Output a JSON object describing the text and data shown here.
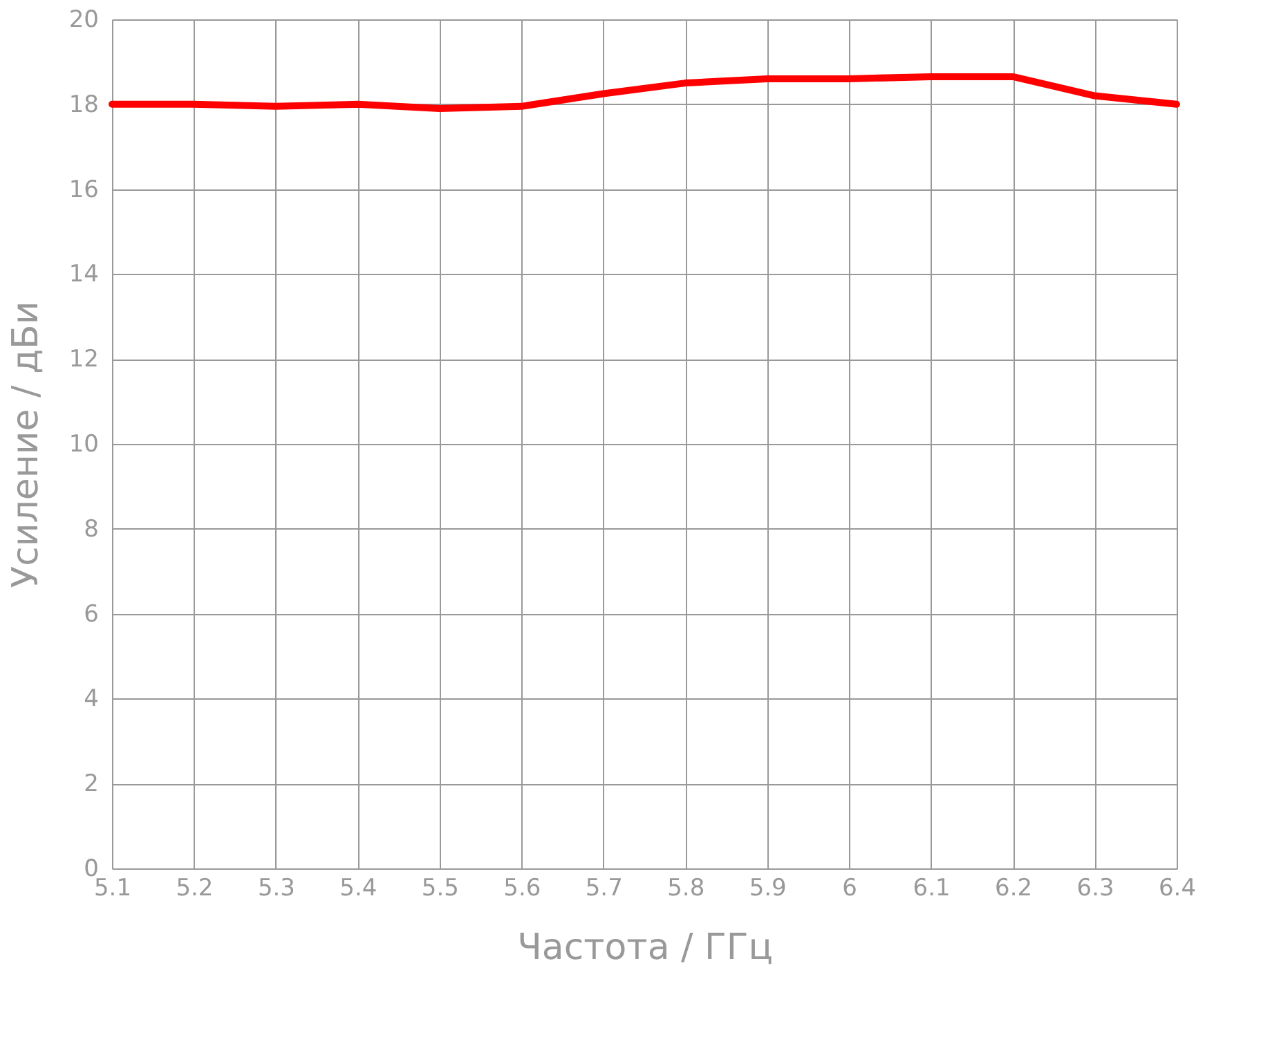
{
  "chart_data": {
    "type": "line",
    "xlabel": "Частота / ГГц",
    "ylabel": "Усиление / дБи",
    "x": [
      5.1,
      5.2,
      5.3,
      5.4,
      5.5,
      5.6,
      5.7,
      5.8,
      5.9,
      6.0,
      6.1,
      6.2,
      6.3,
      6.4
    ],
    "series": [
      {
        "color": "#ff0000",
        "values": [
          18.0,
          18.0,
          17.95,
          18.0,
          17.9,
          17.95,
          18.25,
          18.5,
          18.6,
          18.6,
          18.65,
          18.65,
          18.2,
          18.0
        ]
      }
    ],
    "xlim": [
      5.1,
      6.4
    ],
    "xticks": [
      5.1,
      5.2,
      5.3,
      5.4,
      5.5,
      5.6,
      5.7,
      5.8,
      5.9,
      6,
      6.1,
      6.2,
      6.3,
      6.4
    ],
    "ylim": [
      0,
      20
    ],
    "yticks": [
      0,
      2,
      4,
      6,
      8,
      10,
      12,
      14,
      16,
      18,
      20
    ],
    "grid": true,
    "marker": "none",
    "line_style": "solid"
  }
}
